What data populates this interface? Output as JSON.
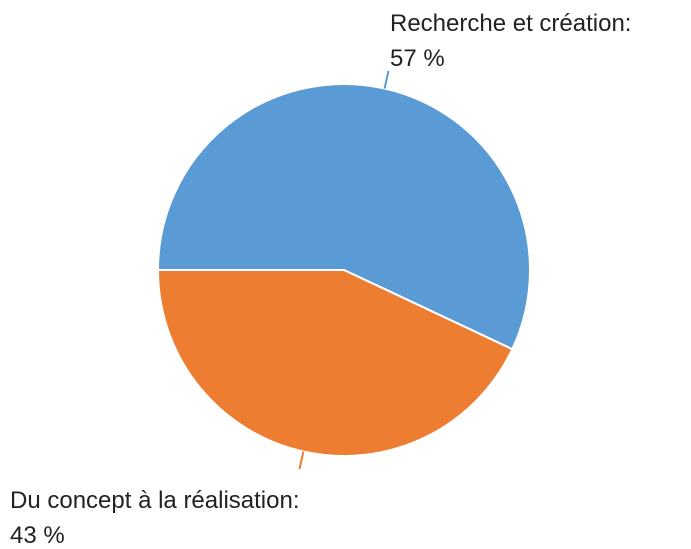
{
  "chart_data": {
    "type": "pie",
    "categories": [
      "Recherche et création:",
      "Du concept à la réalisation:"
    ],
    "values": [
      57,
      43
    ],
    "value_labels": [
      "57 %",
      "43 %"
    ],
    "colors": [
      "#5b9bd5",
      "#ed7d31"
    ]
  }
}
